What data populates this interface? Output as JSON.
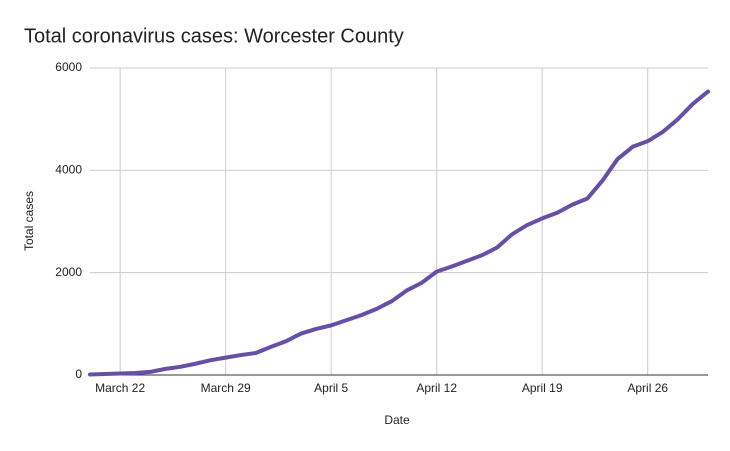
{
  "chart_data": {
    "type": "line",
    "title": "Total coronavirus cases: Worcester County",
    "x_label": "Date",
    "y_label": "Total cases",
    "categories": [
      null,
      null,
      "March 22",
      null,
      null,
      null,
      null,
      null,
      null,
      "March 29",
      null,
      null,
      null,
      null,
      null,
      null,
      "April 5",
      null,
      null,
      null,
      null,
      null,
      null,
      "April 12",
      null,
      null,
      null,
      null,
      null,
      null,
      "April 19",
      null,
      null,
      null,
      null,
      null,
      null,
      "April 26",
      null,
      null,
      null,
      null
    ],
    "series": [
      {
        "name": "Total cases",
        "color": "#674ea7",
        "values": [
          10,
          20,
          30,
          40,
          60,
          120,
          160,
          220,
          290,
          340,
          390,
          430,
          550,
          660,
          810,
          900,
          970,
          1070,
          1170,
          1290,
          1440,
          1650,
          1800,
          2020,
          2120,
          2230,
          2340,
          2490,
          2750,
          2930,
          3060,
          3170,
          3330,
          3450,
          3800,
          4220,
          4460,
          4570,
          4750,
          5000,
          5300,
          5540
        ]
      }
    ],
    "ylim": [
      0,
      6000
    ],
    "yticks": [
      0,
      2000,
      4000,
      6000
    ],
    "grid": true
  }
}
